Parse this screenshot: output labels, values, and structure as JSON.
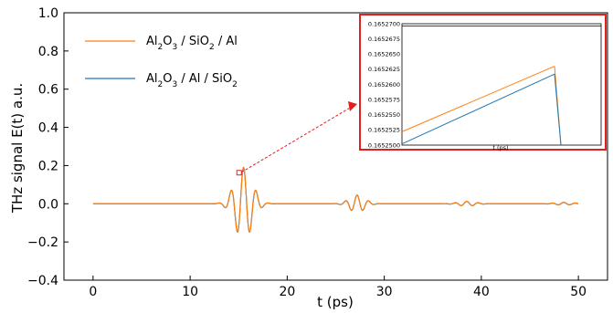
{
  "chart_data": {
    "type": "line",
    "xlabel": "t (ps)",
    "ylabel": "THz signal E(t) a.u.",
    "xlim": [
      -3,
      53
    ],
    "ylim": [
      -0.4,
      1.0
    ],
    "xticks": [
      "0",
      "10",
      "20",
      "30",
      "40",
      "50"
    ],
    "yticks": [
      "−0.4",
      "−0.2",
      "0.0",
      "0.2",
      "0.4",
      "0.6",
      "0.8",
      "1.0"
    ],
    "grid": false,
    "legend_position": "top-left",
    "series": [
      {
        "name_parts": [
          "Al",
          "2",
          "O",
          "3",
          " / SiO",
          "2",
          " / Al"
        ],
        "color": "#ff7f0e"
      },
      {
        "name_parts": [
          "Al",
          "2",
          "O",
          "3",
          " / Al / SiO",
          "2"
        ],
        "color": "#1f77b4"
      }
    ],
    "pulses": [
      {
        "center": 15.5,
        "amplitude": 0.19,
        "width": 0.9,
        "period": 1.3
      },
      {
        "center": 27.2,
        "amplitude": 0.045,
        "width": 0.8,
        "period": 1.2
      },
      {
        "center": 38.5,
        "amplitude": 0.012,
        "width": 0.9,
        "period": 1.2
      },
      {
        "center": 48.5,
        "amplitude": 0.007,
        "width": 0.9,
        "period": 1.2
      }
    ],
    "zoom_marker": {
      "x": 15.0,
      "y": 0.165
    },
    "inset": {
      "yticks": [
        "0.1652700",
        "0.1652675",
        "0.1652650",
        "0.1652625",
        "0.1652600",
        "0.1652575",
        "0.1652550",
        "0.1652525",
        "0.1652500"
      ],
      "ylim": [
        0.16525,
        0.16527
      ],
      "xlabel": "t (ps)",
      "series": [
        {
          "start": 0.1652522,
          "end": 0.165263,
          "color": "#ff7f0e"
        },
        {
          "start": 0.1652502,
          "end": 0.1652617,
          "color": "#1f77b4"
        }
      ],
      "highlight_color": "#e32020"
    }
  }
}
